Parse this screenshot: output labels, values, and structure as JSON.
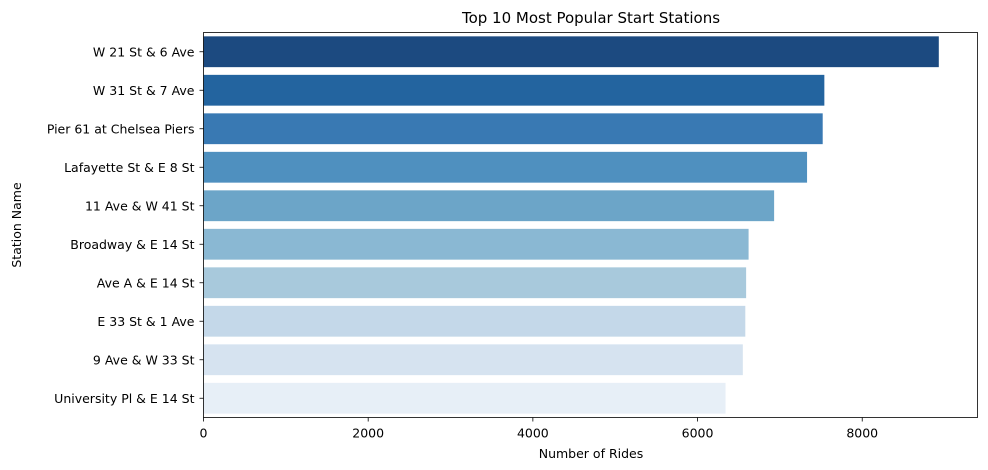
{
  "chart_data": {
    "type": "bar",
    "orientation": "horizontal",
    "title": "Top 10 Most Popular Start Stations",
    "xlabel": "Number of Rides",
    "ylabel": "Station Name",
    "xlim": [
      0,
      9400
    ],
    "xticks": [
      0,
      2000,
      4000,
      6000,
      8000
    ],
    "xtick_labels": [
      "0",
      "2000",
      "4000",
      "6000",
      "8000"
    ],
    "grid": false,
    "categories": [
      "W 21 St & 6 Ave",
      "W 31 St & 7 Ave",
      "Pier 61 at Chelsea Piers",
      "Lafayette St & E 8 St",
      "11 Ave & W 41 St",
      "Broadway & E 14 St",
      "Ave A & E 14 St",
      "E 33 St & 1 Ave",
      "9 Ave & W 33 St",
      "University Pl & E 14 St"
    ],
    "values": [
      8930,
      7540,
      7520,
      7330,
      6930,
      6620,
      6590,
      6580,
      6550,
      6340
    ],
    "colors": [
      "#1c4a80",
      "#23649f",
      "#3979b3",
      "#4f90bf",
      "#6ca5c8",
      "#8ab8d3",
      "#a8c9dc",
      "#c4d8e9",
      "#d6e3f0",
      "#e7eff7"
    ]
  }
}
